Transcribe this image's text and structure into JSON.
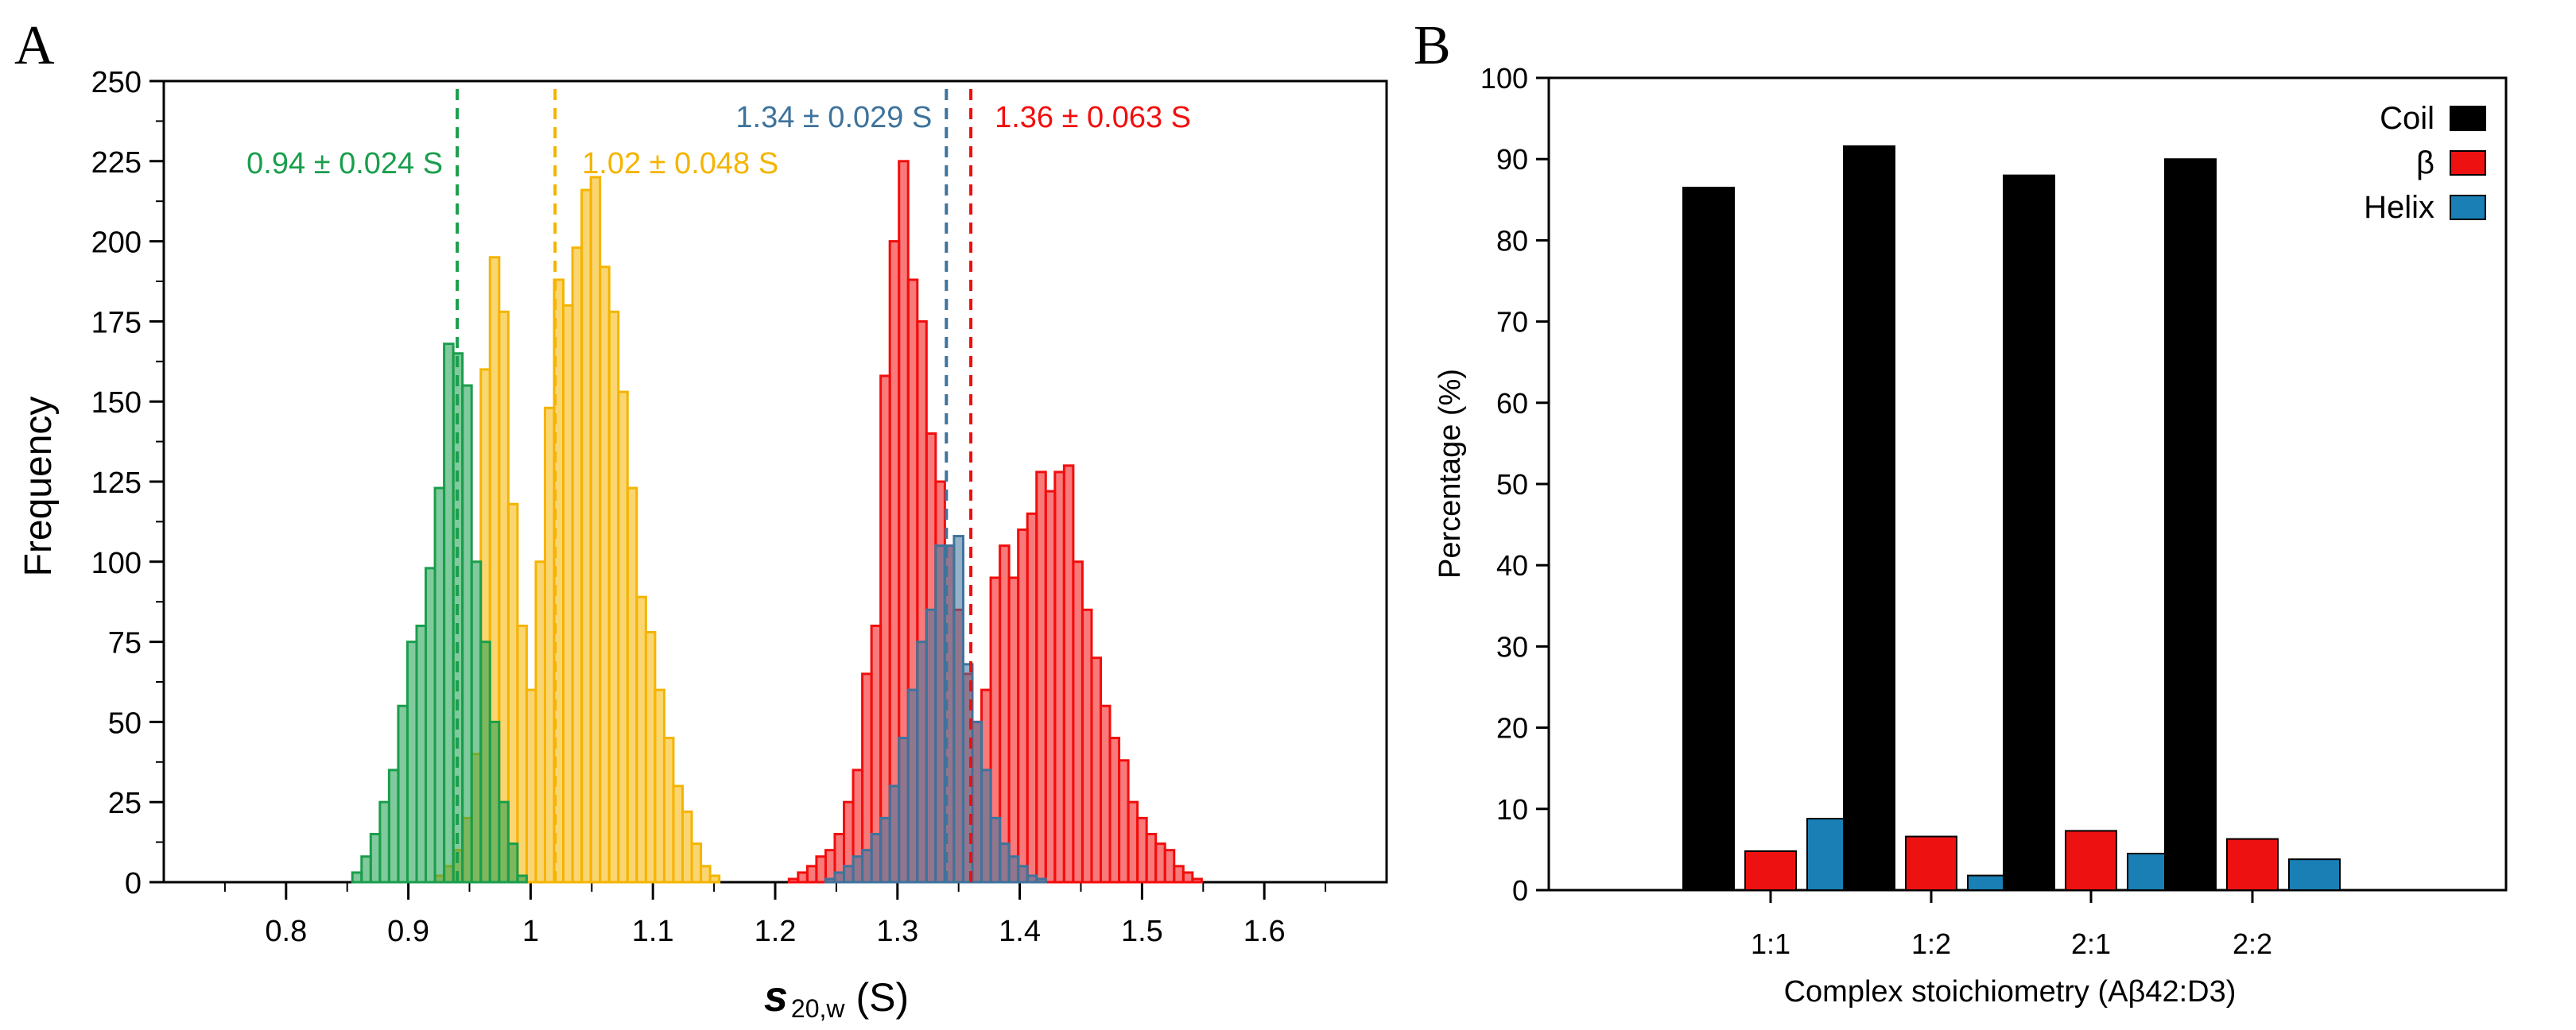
{
  "panels": {
    "a_label": "A",
    "b_label": "B"
  },
  "chart_data": [
    {
      "type": "bar",
      "subtype": "histogram",
      "panel": "A",
      "xlabel_main": "s",
      "xlabel_sub": "20,w",
      "xlabel_unit": "(S)",
      "ylabel": "Frequency",
      "xlim": [
        0.7,
        1.7
      ],
      "ylim": [
        0,
        250
      ],
      "xticks": [
        0.8,
        0.9,
        1.0,
        1.1,
        1.2,
        1.3,
        1.4,
        1.5,
        1.6
      ],
      "xtick_labels": [
        "0.8",
        "0.9",
        "1",
        "1.1",
        "1.2",
        "1.3",
        "1.4",
        "1.5",
        "1.6"
      ],
      "yticks": [
        0,
        25,
        50,
        75,
        100,
        125,
        150,
        175,
        200,
        225,
        250
      ],
      "bin_width": 0.0075,
      "series": [
        {
          "color": "#f5b400",
          "x": [
            0.9255,
            0.933,
            0.9405,
            0.948,
            0.9555,
            0.963,
            0.9705,
            0.978,
            0.9855,
            0.993,
            1.0005,
            1.008,
            1.0155,
            1.023,
            1.0305,
            1.038,
            1.0455,
            1.053,
            1.0605,
            1.068,
            1.0755,
            1.083,
            1.0905,
            1.098,
            1.1055,
            1.113,
            1.1205,
            1.128,
            1.1355,
            1.143,
            1.1505
          ],
          "values": [
            2,
            5,
            10,
            20,
            40,
            160,
            195,
            178,
            118,
            80,
            60,
            100,
            148,
            188,
            180,
            198,
            216,
            220,
            192,
            178,
            153,
            123,
            89,
            78,
            60,
            45,
            30,
            22,
            12,
            5,
            2
          ],
          "mean_line": 1.02,
          "annotation": "1.02 ± 0.048 S"
        },
        {
          "color": "#1a9e4c",
          "x": [
            0.858,
            0.8655,
            0.873,
            0.8805,
            0.888,
            0.8955,
            0.903,
            0.9105,
            0.918,
            0.9255,
            0.933,
            0.9405,
            0.948,
            0.9555,
            0.963,
            0.9705,
            0.978,
            0.9855,
            0.993
          ],
          "values": [
            3,
            8,
            15,
            25,
            35,
            55,
            75,
            80,
            98,
            123,
            168,
            165,
            155,
            100,
            75,
            50,
            25,
            12,
            2
          ],
          "mean_line": 0.94,
          "annotation": "0.94 ± 0.024 S"
        },
        {
          "color": "#f20d0d",
          "x": [
            1.215,
            1.2225,
            1.23,
            1.2375,
            1.245,
            1.2525,
            1.26,
            1.2675,
            1.275,
            1.2825,
            1.29,
            1.2975,
            1.305,
            1.3125,
            1.32,
            1.3275,
            1.335,
            1.3425,
            1.35,
            1.3575,
            1.365,
            1.3725,
            1.38,
            1.3875,
            1.395,
            1.4025,
            1.41,
            1.4175,
            1.425,
            1.4325,
            1.44,
            1.4475,
            1.455,
            1.4625,
            1.47,
            1.4775,
            1.485,
            1.4925,
            1.5,
            1.5075,
            1.515,
            1.5225,
            1.53,
            1.5375,
            1.545
          ],
          "values": [
            1,
            3,
            5,
            8,
            10,
            15,
            25,
            35,
            65,
            80,
            158,
            200,
            225,
            188,
            175,
            140,
            125,
            105,
            85,
            65,
            50,
            60,
            95,
            105,
            95,
            110,
            115,
            128,
            122,
            128,
            130,
            100,
            85,
            70,
            55,
            45,
            38,
            25,
            20,
            15,
            12,
            10,
            5,
            3,
            1
          ],
          "mean_line": 1.36,
          "annotation": "1.36 ± 0.063 S"
        },
        {
          "color": "#3e739c",
          "x": [
            1.245,
            1.2525,
            1.26,
            1.2675,
            1.275,
            1.2825,
            1.29,
            1.2975,
            1.305,
            1.3125,
            1.32,
            1.3275,
            1.335,
            1.3425,
            1.35,
            1.3575,
            1.365,
            1.3725,
            1.38,
            1.3875,
            1.395,
            1.4025,
            1.41,
            1.4175
          ],
          "values": [
            1,
            3,
            5,
            8,
            10,
            15,
            20,
            30,
            45,
            60,
            75,
            85,
            105,
            105,
            108,
            68,
            50,
            35,
            20,
            12,
            8,
            5,
            2,
            1
          ],
          "mean_line": 1.34,
          "annotation": "1.34 ± 0.029 S"
        }
      ]
    },
    {
      "type": "bar",
      "panel": "B",
      "xlabel": "Complex stoichiometry (Aβ42:D3)",
      "ylabel": "Percentage (%)",
      "ylim": [
        0,
        100
      ],
      "yticks": [
        0,
        10,
        20,
        30,
        40,
        50,
        60,
        70,
        80,
        90,
        100
      ],
      "categories": [
        "1:1",
        "1:2",
        "2:1",
        "2:2"
      ],
      "series": [
        {
          "name": "Coil",
          "color": "#000000",
          "values": [
            86.5,
            91.6,
            88.0,
            90.0
          ]
        },
        {
          "name": "β",
          "color": "#ee1111",
          "values": [
            4.8,
            6.6,
            7.3,
            6.3
          ]
        },
        {
          "name": "Helix",
          "color": "#1a7fb4",
          "values": [
            8.8,
            1.8,
            4.5,
            3.8
          ]
        }
      ],
      "legend_position": "top-right"
    }
  ]
}
